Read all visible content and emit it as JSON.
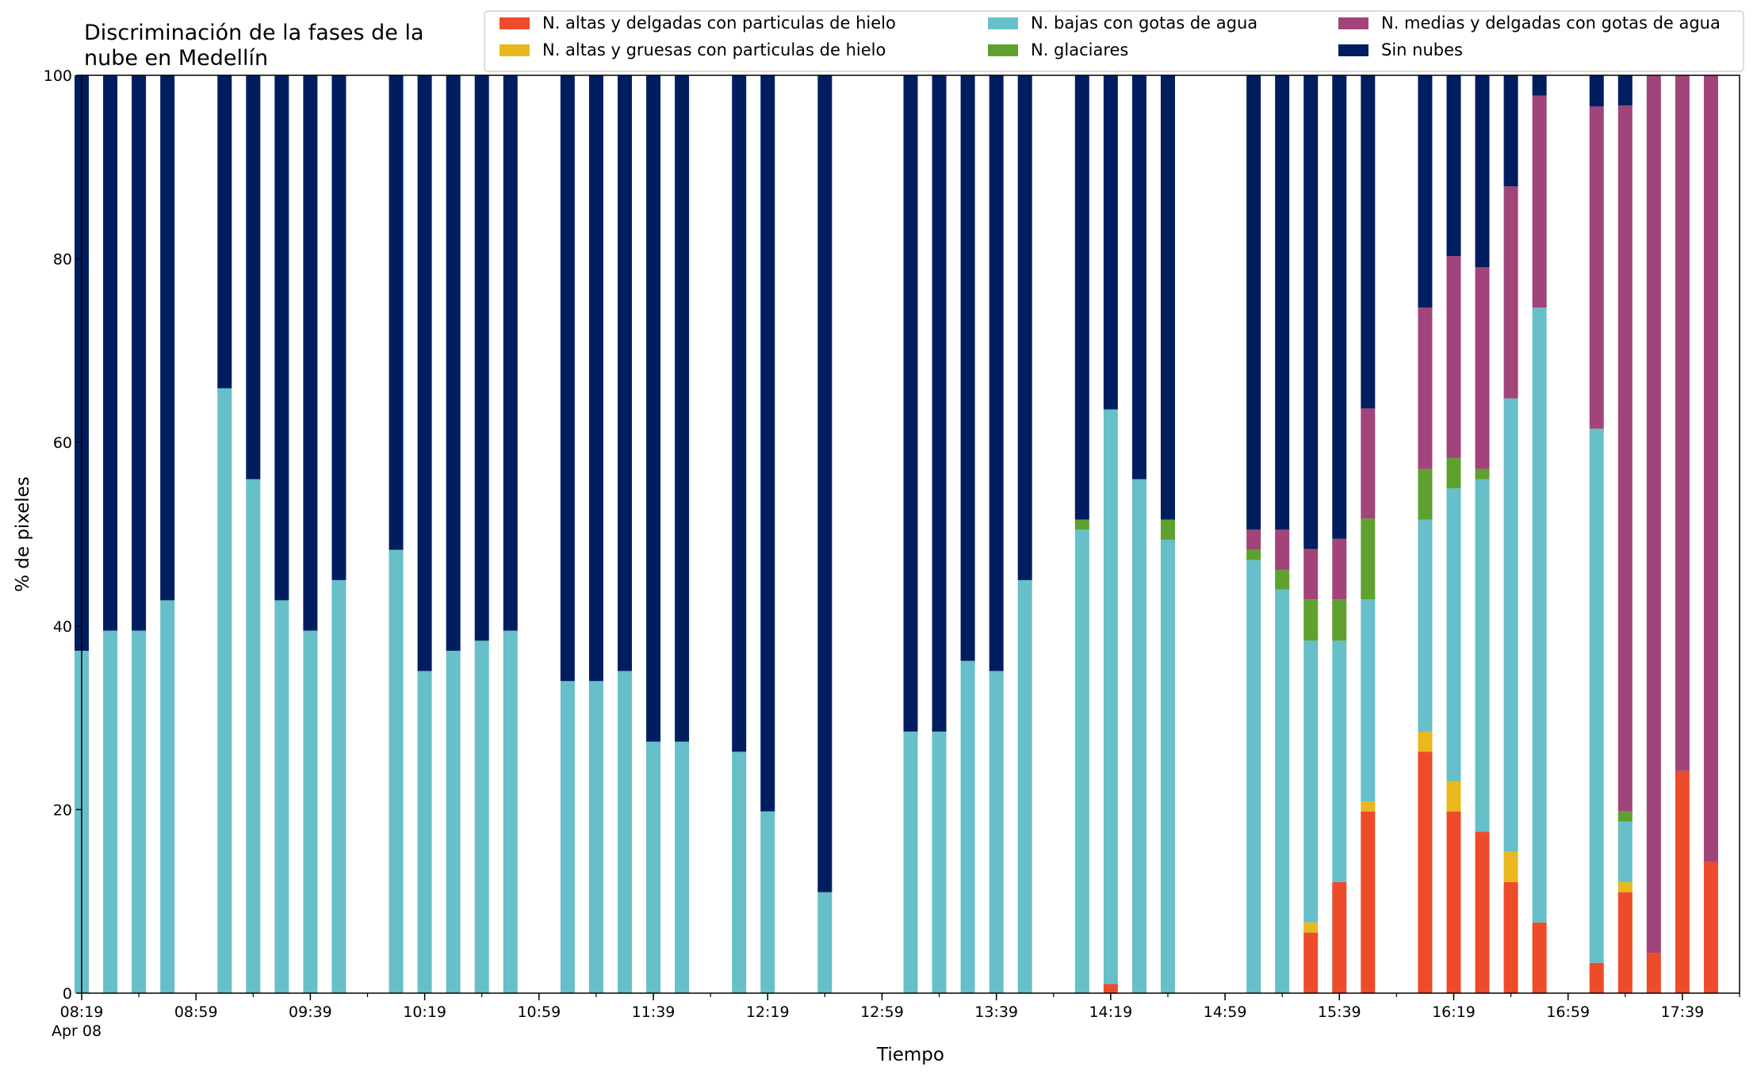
{
  "chart_data": {
    "type": "bar",
    "stacked": true,
    "title": "Discriminación de la fases de la\nnube en Medellín",
    "xlabel": "Tiempo",
    "ylabel": "% de pixeles",
    "ylim": [
      0,
      100
    ],
    "yticks": [
      0,
      20,
      40,
      60,
      80,
      100
    ],
    "x_start": "08:19",
    "x_end": "17:59",
    "x_step_minutes": 10,
    "x_ticks": [
      {
        "t": "08:19",
        "label": "08:19",
        "sublabel": "Apr 08"
      },
      {
        "t": "08:59",
        "label": "08:59"
      },
      {
        "t": "09:39",
        "label": "09:39"
      },
      {
        "t": "10:19",
        "label": "10:19"
      },
      {
        "t": "10:59",
        "label": "10:59"
      },
      {
        "t": "11:39",
        "label": "11:39"
      },
      {
        "t": "12:19",
        "label": "12:19"
      },
      {
        "t": "12:59",
        "label": "12:59"
      },
      {
        "t": "13:39",
        "label": "13:39"
      },
      {
        "t": "14:19",
        "label": "14:19"
      },
      {
        "t": "14:59",
        "label": "14:59"
      },
      {
        "t": "15:39",
        "label": "15:39"
      },
      {
        "t": "16:19",
        "label": "16:19"
      },
      {
        "t": "16:59",
        "label": "16:59"
      },
      {
        "t": "17:39",
        "label": "17:39"
      }
    ],
    "legend_position": "top-right",
    "legend_columns": 3,
    "series": [
      {
        "key": "ah",
        "name": "N. altas y delgadas con particulas de hielo",
        "color": "#ee4b2b"
      },
      {
        "key": "ag",
        "name": "N. altas y gruesas con particulas de hielo",
        "color": "#e8b81c"
      },
      {
        "key": "bg",
        "name": "N. bajas con gotas de agua",
        "color": "#66bfc9"
      },
      {
        "key": "gl",
        "name": "N. glaciares",
        "color": "#5ea12e"
      },
      {
        "key": "md",
        "name": "N. medias y delgadas con gotas de agua",
        "color": "#a1447a"
      },
      {
        "key": "sn",
        "name": "Sin nubes",
        "color": "#001e5f"
      }
    ],
    "bars": [
      {
        "t": "08:19",
        "ah": 0,
        "ag": 0,
        "bg": 37.3,
        "gl": 0,
        "md": 0,
        "sn": 62.7
      },
      {
        "t": "08:29",
        "ah": 0,
        "ag": 0,
        "bg": 39.5,
        "gl": 0,
        "md": 0,
        "sn": 60.5
      },
      {
        "t": "08:39",
        "ah": 0,
        "ag": 0,
        "bg": 39.5,
        "gl": 0,
        "md": 0,
        "sn": 60.5
      },
      {
        "t": "08:49",
        "ah": 0,
        "ag": 0,
        "bg": 42.8,
        "gl": 0,
        "md": 0,
        "sn": 57.2
      },
      {
        "t": "09:09",
        "ah": 0,
        "ag": 0,
        "bg": 65.9,
        "gl": 0,
        "md": 0,
        "sn": 34.1
      },
      {
        "t": "09:19",
        "ah": 0,
        "ag": 0,
        "bg": 56.0,
        "gl": 0,
        "md": 0,
        "sn": 44.0
      },
      {
        "t": "09:29",
        "ah": 0,
        "ag": 0,
        "bg": 42.8,
        "gl": 0,
        "md": 0,
        "sn": 57.2
      },
      {
        "t": "09:39",
        "ah": 0,
        "ag": 0,
        "bg": 39.5,
        "gl": 0,
        "md": 0,
        "sn": 60.5
      },
      {
        "t": "09:49",
        "ah": 0,
        "ag": 0,
        "bg": 45.0,
        "gl": 0,
        "md": 0,
        "sn": 55.0
      },
      {
        "t": "10:09",
        "ah": 0,
        "ag": 0,
        "bg": 48.3,
        "gl": 0,
        "md": 0,
        "sn": 51.7
      },
      {
        "t": "10:19",
        "ah": 0,
        "ag": 0,
        "bg": 35.1,
        "gl": 0,
        "md": 0,
        "sn": 64.9
      },
      {
        "t": "10:29",
        "ah": 0,
        "ag": 0,
        "bg": 37.3,
        "gl": 0,
        "md": 0,
        "sn": 62.7
      },
      {
        "t": "10:39",
        "ah": 0,
        "ag": 0,
        "bg": 38.4,
        "gl": 0,
        "md": 0,
        "sn": 61.6
      },
      {
        "t": "10:49",
        "ah": 0,
        "ag": 0,
        "bg": 39.5,
        "gl": 0,
        "md": 0,
        "sn": 60.5
      },
      {
        "t": "11:09",
        "ah": 0,
        "ag": 0,
        "bg": 34.0,
        "gl": 0,
        "md": 0,
        "sn": 66.0
      },
      {
        "t": "11:19",
        "ah": 0,
        "ag": 0,
        "bg": 34.0,
        "gl": 0,
        "md": 0,
        "sn": 66.0
      },
      {
        "t": "11:29",
        "ah": 0,
        "ag": 0,
        "bg": 35.1,
        "gl": 0,
        "md": 0,
        "sn": 64.9
      },
      {
        "t": "11:39",
        "ah": 0,
        "ag": 0,
        "bg": 27.4,
        "gl": 0,
        "md": 0,
        "sn": 72.6
      },
      {
        "t": "11:49",
        "ah": 0,
        "ag": 0,
        "bg": 27.4,
        "gl": 0,
        "md": 0,
        "sn": 72.6
      },
      {
        "t": "12:09",
        "ah": 0,
        "ag": 0,
        "bg": 26.3,
        "gl": 0,
        "md": 0,
        "sn": 73.7
      },
      {
        "t": "12:19",
        "ah": 0,
        "ag": 0,
        "bg": 19.8,
        "gl": 0,
        "md": 0,
        "sn": 80.2
      },
      {
        "t": "12:39",
        "ah": 0,
        "ag": 0,
        "bg": 11.0,
        "gl": 0,
        "md": 0,
        "sn": 89.0
      },
      {
        "t": "13:09",
        "ah": 0,
        "ag": 0,
        "bg": 28.5,
        "gl": 0,
        "md": 0,
        "sn": 71.5
      },
      {
        "t": "13:19",
        "ah": 0,
        "ag": 0,
        "bg": 28.5,
        "gl": 0,
        "md": 0,
        "sn": 71.5
      },
      {
        "t": "13:29",
        "ah": 0,
        "ag": 0,
        "bg": 36.2,
        "gl": 0,
        "md": 0,
        "sn": 63.8
      },
      {
        "t": "13:39",
        "ah": 0,
        "ag": 0,
        "bg": 35.1,
        "gl": 0,
        "md": 0,
        "sn": 64.9
      },
      {
        "t": "13:49",
        "ah": 0,
        "ag": 0,
        "bg": 45.0,
        "gl": 0,
        "md": 0,
        "sn": 55.0
      },
      {
        "t": "14:09",
        "ah": 0,
        "ag": 0,
        "bg": 50.5,
        "gl": 1.1,
        "md": 0,
        "sn": 48.4
      },
      {
        "t": "14:19",
        "ah": 1.0,
        "ag": 0,
        "bg": 62.6,
        "gl": 0,
        "md": 0,
        "sn": 36.4
      },
      {
        "t": "14:29",
        "ah": 0,
        "ag": 0,
        "bg": 56.0,
        "gl": 0,
        "md": 0,
        "sn": 44.0
      },
      {
        "t": "14:39",
        "ah": 0,
        "ag": 0,
        "bg": 49.4,
        "gl": 2.2,
        "md": 0,
        "sn": 48.4
      },
      {
        "t": "15:09",
        "ah": 0,
        "ag": 0,
        "bg": 47.2,
        "gl": 1.1,
        "md": 2.2,
        "sn": 49.5
      },
      {
        "t": "15:19",
        "ah": 0,
        "ag": 0,
        "bg": 44.0,
        "gl": 2.1,
        "md": 4.4,
        "sn": 49.5
      },
      {
        "t": "15:29",
        "ah": 6.6,
        "ag": 1.1,
        "bg": 30.7,
        "gl": 4.5,
        "md": 5.5,
        "sn": 51.6
      },
      {
        "t": "15:39",
        "ah": 12.1,
        "ag": 0,
        "bg": 26.3,
        "gl": 4.5,
        "md": 6.6,
        "sn": 50.5
      },
      {
        "t": "15:49",
        "ah": 19.8,
        "ag": 1.1,
        "bg": 22.0,
        "gl": 8.8,
        "md": 12.0,
        "sn": 36.3
      },
      {
        "t": "16:09",
        "ah": 26.3,
        "ag": 2.2,
        "bg": 23.1,
        "gl": 5.5,
        "md": 17.6,
        "sn": 25.3
      },
      {
        "t": "16:19",
        "ah": 19.8,
        "ag": 3.3,
        "bg": 31.9,
        "gl": 3.3,
        "md": 22.0,
        "sn": 19.7
      },
      {
        "t": "16:29",
        "ah": 17.6,
        "ag": 0,
        "bg": 38.4,
        "gl": 1.1,
        "md": 22.0,
        "sn": 20.9
      },
      {
        "t": "16:39",
        "ah": 12.1,
        "ag": 3.3,
        "bg": 49.4,
        "gl": 0,
        "md": 23.1,
        "sn": 12.1
      },
      {
        "t": "16:49",
        "ah": 7.7,
        "ag": 0,
        "bg": 67.0,
        "gl": 0,
        "md": 23.1,
        "sn": 2.2
      },
      {
        "t": "17:09",
        "ah": 3.3,
        "ag": 0,
        "bg": 58.2,
        "gl": 0,
        "md": 35.1,
        "sn": 3.4
      },
      {
        "t": "17:19",
        "ah": 11.0,
        "ag": 1.1,
        "bg": 6.6,
        "gl": 1.1,
        "md": 76.9,
        "sn": 3.3
      },
      {
        "t": "17:29",
        "ah": 4.4,
        "ag": 0,
        "bg": 0,
        "gl": 0,
        "md": 95.6,
        "sn": 0
      },
      {
        "t": "17:39",
        "ah": 24.2,
        "ag": 0,
        "bg": 0,
        "gl": 0,
        "md": 75.8,
        "sn": 0
      },
      {
        "t": "17:49",
        "ah": 14.3,
        "ag": 0,
        "bg": 0,
        "gl": 0,
        "md": 85.7,
        "sn": 0
      }
    ]
  }
}
